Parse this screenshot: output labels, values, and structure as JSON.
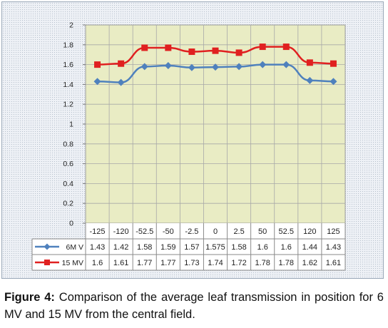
{
  "chart_data": {
    "type": "line",
    "categories": [
      "-125",
      "-120",
      "-52.5",
      "-50",
      "-2.5",
      "0",
      "2.5",
      "50",
      "52.5",
      "120",
      "125"
    ],
    "series": [
      {
        "name": "6M V",
        "color": "#4f81bd",
        "marker": "diamond",
        "values": [
          1.43,
          1.42,
          1.58,
          1.59,
          1.57,
          1.575,
          1.58,
          1.6,
          1.6,
          1.44,
          1.43
        ],
        "labels": [
          "1.43",
          "1.42",
          "1.58",
          "1.59",
          "1.57",
          "1.575",
          "1.58",
          "1.6",
          "1.6",
          "1.44",
          "1.43"
        ]
      },
      {
        "name": "15 MV",
        "color": "#e02020",
        "marker": "square",
        "values": [
          1.6,
          1.61,
          1.77,
          1.77,
          1.73,
          1.74,
          1.72,
          1.78,
          1.78,
          1.62,
          1.61
        ],
        "labels": [
          "1.6",
          "1.61",
          "1.77",
          "1.77",
          "1.73",
          "1.74",
          "1.72",
          "1.78",
          "1.78",
          "1.62",
          "1.61"
        ]
      }
    ],
    "y_ticks": [
      "0",
      "0.2",
      "0.4",
      "0.6",
      "0.8",
      "1",
      "1.2",
      "1.4",
      "1.6",
      "1.8",
      "2"
    ],
    "ylim": [
      0,
      2
    ],
    "grid": true,
    "data_table": true,
    "plot_background": "#e9ecc4"
  },
  "caption": {
    "label": "Figure 4:",
    "text": "Comparison of the average leaf transmission in position for 6 MV and 15 MV from the central field."
  }
}
